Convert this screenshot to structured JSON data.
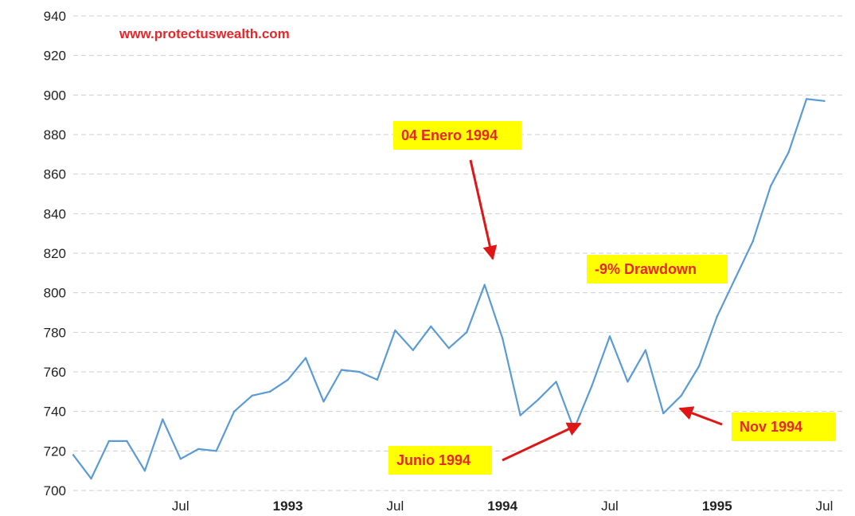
{
  "watermark": "www.protectuswealth.com",
  "annotations": {
    "peak": "04 Enero 1994",
    "drawdown": "-9% Drawdown",
    "june": "Junio 1994",
    "nov": "Nov 1994"
  },
  "colors": {
    "line": "#5b9bd5",
    "annotation_text": "#e8262a",
    "annotation_bg": "#ffff00",
    "arrow": "#e01515"
  },
  "chart_data": {
    "type": "line",
    "title": "",
    "xlabel": "",
    "ylabel": "",
    "x_start": "1992-01",
    "x_end": "1995-08",
    "x_ticks": [
      {
        "date": "1992-07",
        "label": "Jul",
        "major": false
      },
      {
        "date": "1993-01",
        "label": "1993",
        "major": true
      },
      {
        "date": "1993-07",
        "label": "Jul",
        "major": false
      },
      {
        "date": "1994-01",
        "label": "1994",
        "major": true
      },
      {
        "date": "1994-07",
        "label": "Jul",
        "major": false
      },
      {
        "date": "1995-01",
        "label": "1995",
        "major": true
      },
      {
        "date": "1995-07",
        "label": "Jul",
        "major": false
      }
    ],
    "y_ticks": [
      700,
      720,
      740,
      760,
      780,
      800,
      820,
      840,
      860,
      880,
      900,
      920,
      940
    ],
    "ylim": [
      700,
      940
    ],
    "grid": true,
    "series": [
      {
        "color": "#5b9bd5",
        "points": [
          [
            "1992-01",
            718
          ],
          [
            "1992-02",
            706
          ],
          [
            "1992-03",
            725
          ],
          [
            "1992-04",
            725
          ],
          [
            "1992-05",
            710
          ],
          [
            "1992-06",
            736
          ],
          [
            "1992-07",
            716
          ],
          [
            "1992-08",
            721
          ],
          [
            "1992-09",
            720
          ],
          [
            "1992-10",
            740
          ],
          [
            "1992-11",
            748
          ],
          [
            "1992-12",
            750
          ],
          [
            "1993-01",
            756
          ],
          [
            "1993-02",
            767
          ],
          [
            "1993-03",
            745
          ],
          [
            "1993-04",
            761
          ],
          [
            "1993-05",
            760
          ],
          [
            "1993-06",
            756
          ],
          [
            "1993-07",
            781
          ],
          [
            "1993-08",
            771
          ],
          [
            "1993-09",
            783
          ],
          [
            "1993-10",
            772
          ],
          [
            "1993-11",
            780
          ],
          [
            "1993-12",
            804
          ],
          [
            "1994-01",
            777
          ],
          [
            "1994-02",
            738
          ],
          [
            "1994-03",
            746
          ],
          [
            "1994-04",
            755
          ],
          [
            "1994-05",
            731
          ],
          [
            "1994-06",
            753
          ],
          [
            "1994-07",
            778
          ],
          [
            "1994-08",
            755
          ],
          [
            "1994-09",
            771
          ],
          [
            "1994-10",
            739
          ],
          [
            "1994-11",
            748
          ],
          [
            "1994-12",
            763
          ],
          [
            "1995-01",
            788
          ],
          [
            "1995-02",
            807
          ],
          [
            "1995-03",
            826
          ],
          [
            "1995-04",
            854
          ],
          [
            "1995-05",
            871
          ],
          [
            "1995-06",
            898
          ],
          [
            "1995-07",
            897
          ]
        ]
      }
    ]
  }
}
